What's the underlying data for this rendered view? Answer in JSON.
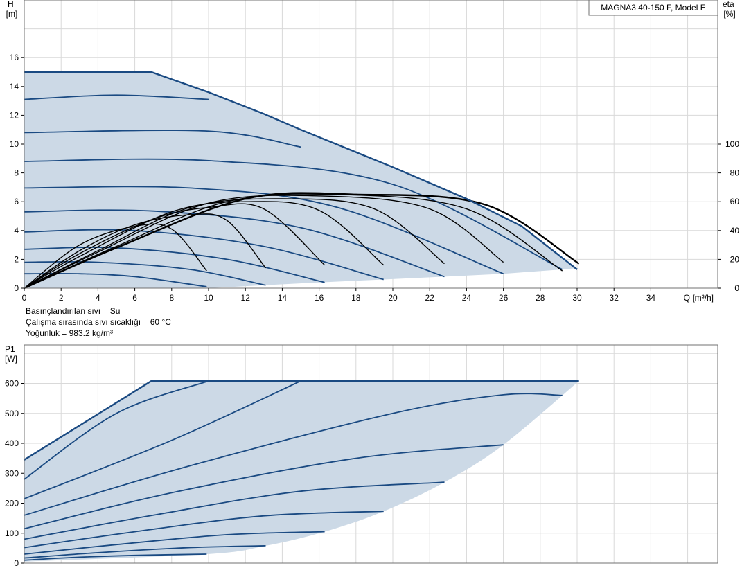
{
  "chart_data": [
    {
      "type": "line",
      "title": "MAGNA3 40-150 F, Model E",
      "xlabel": "Q [m³/h]",
      "ylabel": "H\n[m]",
      "ylabel_right": "eta\n[%]",
      "xlim": [
        0,
        38
      ],
      "ylim": [
        0,
        20
      ],
      "y2lim": [
        0,
        100
      ],
      "x_ticks": [
        0,
        2,
        4,
        6,
        8,
        10,
        12,
        14,
        16,
        18,
        20,
        22,
        24,
        26,
        28,
        30,
        32,
        34
      ],
      "y_ticks": [
        0,
        2,
        4,
        6,
        8,
        10,
        12,
        14,
        16
      ],
      "y2_ticks": [
        0,
        20,
        40,
        60,
        80,
        100
      ],
      "grid": true,
      "colors": {
        "curve": "#1a4a82",
        "efficiency": "#000000",
        "fill": "#ccd9e6"
      },
      "max_curve": [
        [
          0,
          15
        ],
        [
          6.9,
          15
        ],
        [
          10,
          13.6
        ],
        [
          13,
          12.1
        ],
        [
          15,
          11.0
        ],
        [
          20,
          8.4
        ],
        [
          24,
          6.2
        ],
        [
          27,
          4.3
        ],
        [
          30,
          1.3
        ]
      ],
      "min_curve": [
        [
          0,
          0
        ],
        [
          10,
          0
        ],
        [
          13,
          0.2
        ],
        [
          16,
          0.4
        ],
        [
          19.5,
          0.6
        ],
        [
          22.8,
          0.8
        ],
        [
          26,
          1.0
        ],
        [
          29.2,
          1.3
        ],
        [
          30.1,
          1.4
        ]
      ],
      "series": [
        {
          "values": [
            [
              0,
              1.0
            ],
            [
              3,
              1.0
            ],
            [
              6,
              0.8
            ],
            [
              9.9,
              0.1
            ]
          ]
        },
        {
          "values": [
            [
              0,
              1.8
            ],
            [
              4,
              1.8
            ],
            [
              9,
              1.3
            ],
            [
              13.1,
              0.2
            ]
          ]
        },
        {
          "values": [
            [
              0,
              2.7
            ],
            [
              5,
              2.8
            ],
            [
              11,
              2.0
            ],
            [
              16.3,
              0.4
            ]
          ]
        },
        {
          "values": [
            [
              0,
              3.9
            ],
            [
              6,
              4.0
            ],
            [
              13,
              2.9
            ],
            [
              19.5,
              0.6
            ]
          ]
        },
        {
          "values": [
            [
              0,
              5.3
            ],
            [
              7,
              5.35
            ],
            [
              15,
              4.2
            ],
            [
              22.8,
              0.8
            ]
          ]
        },
        {
          "values": [
            [
              0,
              6.95
            ],
            [
              9,
              6.95
            ],
            [
              17,
              5.6
            ],
            [
              26,
              1.0
            ]
          ]
        },
        {
          "values": [
            [
              0,
              8.8
            ],
            [
              10,
              8.85
            ],
            [
              20,
              7.2
            ],
            [
              29.2,
              1.3
            ]
          ]
        },
        {
          "values": [
            [
              0,
              10.8
            ],
            [
              10,
              10.9
            ],
            [
              15,
              9.8
            ]
          ]
        },
        {
          "values": [
            [
              0,
              13.1
            ],
            [
              5,
              13.4
            ],
            [
              10,
              13.1
            ]
          ]
        }
      ],
      "efficiency_series": [
        {
          "values": [
            [
              0,
              0
            ],
            [
              3,
              30
            ],
            [
              6,
              43
            ],
            [
              8,
              41
            ],
            [
              9.9,
              12
            ]
          ]
        },
        {
          "values": [
            [
              0,
              0
            ],
            [
              3,
              26
            ],
            [
              6,
              44
            ],
            [
              9,
              51
            ],
            [
              11,
              47
            ],
            [
              13.1,
              14
            ]
          ]
        },
        {
          "values": [
            [
              0,
              0
            ],
            [
              3,
              24
            ],
            [
              7,
              48
            ],
            [
              10,
              56
            ],
            [
              13,
              55
            ],
            [
              16.3,
              16
            ]
          ]
        },
        {
          "values": [
            [
              0,
              0
            ],
            [
              3,
              22
            ],
            [
              8,
              53
            ],
            [
              12,
              60
            ],
            [
              16,
              54
            ],
            [
              19.5,
              16
            ]
          ]
        },
        {
          "values": [
            [
              0,
              0
            ],
            [
              4,
              26
            ],
            [
              9,
              56
            ],
            [
              14,
              62
            ],
            [
              19,
              55
            ],
            [
              22.8,
              17
            ]
          ]
        },
        {
          "values": [
            [
              0,
              0
            ],
            [
              4,
              25
            ],
            [
              10,
              59
            ],
            [
              16,
              64
            ],
            [
              22,
              55
            ],
            [
              26,
              18
            ]
          ]
        },
        {
          "values": [
            [
              0,
              0
            ],
            [
              5,
              29
            ],
            [
              11,
              60
            ],
            [
              17,
              65
            ],
            [
              24,
              55
            ],
            [
              29.2,
              12
            ]
          ]
        },
        {
          "values": [
            [
              0,
              0
            ],
            [
              5,
              28
            ],
            [
              12,
              62
            ],
            [
              18,
              65
            ],
            [
              25,
              58
            ],
            [
              30.1,
              17
            ]
          ]
        }
      ]
    },
    {
      "type": "line",
      "title": "",
      "xlabel": "",
      "ylabel": "P1\n[W]",
      "xlim": [
        0,
        38
      ],
      "ylim": [
        0,
        700
      ],
      "y_ticks": [
        0,
        100,
        200,
        300,
        400,
        500,
        600
      ],
      "grid": true,
      "colors": {
        "curve": "#1a4a82",
        "fill": "#ccd9e6"
      },
      "max_curve": [
        [
          0,
          345
        ],
        [
          6.9,
          608
        ],
        [
          30.1,
          608
        ]
      ],
      "min_curve": [
        [
          0,
          5
        ],
        [
          9.9,
          30
        ],
        [
          13.1,
          58
        ],
        [
          16.3,
          105
        ],
        [
          19.5,
          173
        ],
        [
          22.8,
          270
        ],
        [
          26,
          395
        ],
        [
          30.1,
          608
        ]
      ],
      "series": [
        {
          "values": [
            [
              0,
              10
            ],
            [
              3,
              20
            ],
            [
              6,
              26
            ],
            [
              9.9,
              30
            ]
          ]
        },
        {
          "values": [
            [
              0,
              17
            ],
            [
              4,
              35
            ],
            [
              9,
              52
            ],
            [
              13.1,
              58
            ]
          ]
        },
        {
          "values": [
            [
              0,
              30
            ],
            [
              5,
              62
            ],
            [
              11,
              95
            ],
            [
              16.3,
              105
            ]
          ]
        },
        {
          "values": [
            [
              0,
              52
            ],
            [
              6,
              105
            ],
            [
              13,
              158
            ],
            [
              19.5,
              173
            ]
          ]
        },
        {
          "values": [
            [
              0,
              80
            ],
            [
              7,
              160
            ],
            [
              15,
              240
            ],
            [
              22.8,
              270
            ]
          ]
        },
        {
          "values": [
            [
              0,
              115
            ],
            [
              8,
              235
            ],
            [
              18,
              350
            ],
            [
              26,
              395
            ]
          ]
        },
        {
          "values": [
            [
              0,
              160
            ],
            [
              9,
              325
            ],
            [
              20,
              500
            ],
            [
              26,
              562
            ],
            [
              29.2,
              560
            ]
          ]
        },
        {
          "values": [
            [
              0,
              215
            ],
            [
              8,
              410
            ],
            [
              15,
              608
            ]
          ]
        },
        {
          "values": [
            [
              0,
              280
            ],
            [
              5,
              500
            ],
            [
              10,
              608
            ]
          ]
        }
      ]
    }
  ],
  "notes": {
    "line1": "Basınçlandırılan sıvı = Su",
    "line2": "Çalışma sırasında sıvı sıcaklığı = 60 °C",
    "line3": "Yoğunluk = 983.2 kg/m³"
  }
}
